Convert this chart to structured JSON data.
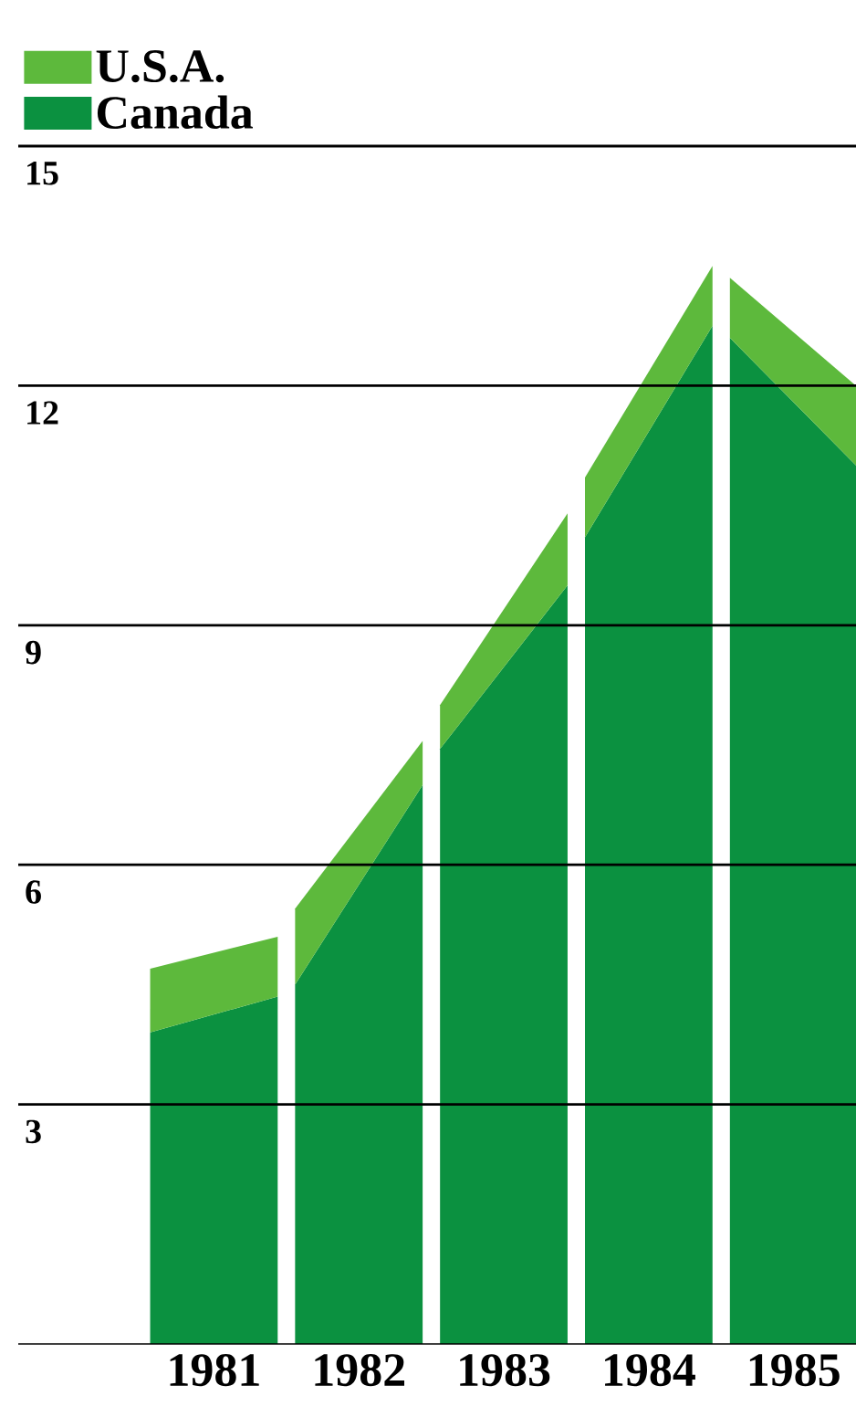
{
  "chart_data": {
    "type": "area",
    "stacked": true,
    "legend": "top left",
    "x": [
      1981,
      1981.88,
      1981.94,
      1982,
      1982.88,
      1982.94,
      1983,
      1983.88,
      1983.94,
      1984,
      1984.88,
      1984.94,
      1985,
      1985.87
    ],
    "series": [
      {
        "name": "Canada",
        "color": "#0b9140",
        "values": [
          3.9,
          4.35,
          null,
          4.5,
          7.0,
          null,
          7.45,
          9.5,
          null,
          10.1,
          12.75,
          null,
          12.6,
          11.0
        ]
      },
      {
        "name": "U.S.A.",
        "color": "#5db93c",
        "values": [
          0.8,
          0.75,
          null,
          0.95,
          0.55,
          null,
          0.55,
          0.9,
          null,
          0.75,
          0.75,
          null,
          0.75,
          1.0
        ]
      }
    ],
    "xlim": [
      1980.09,
      1985.87
    ],
    "xticks": [
      {
        "value": 1981.44,
        "label": "1981"
      },
      {
        "value": 1982.44,
        "label": "1982"
      },
      {
        "value": 1983.44,
        "label": "1983"
      },
      {
        "value": 1984.44,
        "label": "1984"
      },
      {
        "value": 1985.44,
        "label": "1985"
      }
    ],
    "ylim": [
      0,
      15
    ],
    "yticks": [
      3,
      6,
      9,
      12,
      15
    ],
    "grid": "y"
  }
}
